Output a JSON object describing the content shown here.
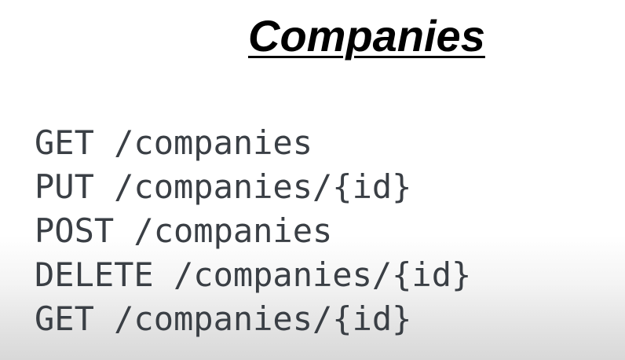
{
  "slide": {
    "title": "Companies",
    "endpoints": [
      "GET /companies",
      "PUT /companies/{id}",
      "POST /companies",
      "DELETE /companies/{id}",
      "GET /companies/{id}"
    ]
  },
  "colors": {
    "title_text": "#000000",
    "endpoint_text": "#3a3f45",
    "background": "#ffffff"
  }
}
